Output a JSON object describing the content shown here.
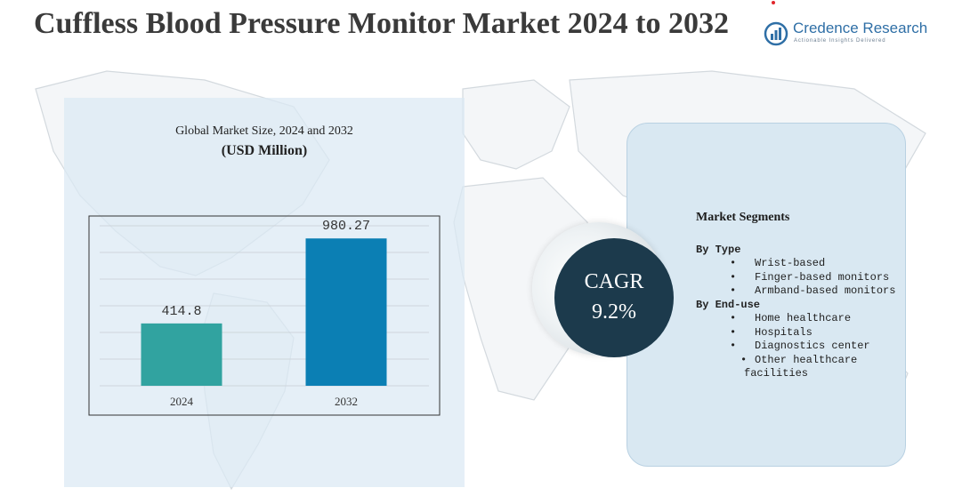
{
  "header": {
    "title": "Cuffless Blood Pressure Monitor Market 2024 to 2032"
  },
  "logo": {
    "name": "Credence Research",
    "tagline": "Actionable Insights Delivered",
    "icon": "bar-chart-circle-icon"
  },
  "chart_data": {
    "type": "bar",
    "title": "Global Market Size, 2024 and 2032",
    "subtitle": "(USD Million)",
    "categories": [
      "2024",
      "2032"
    ],
    "values": [
      414.8,
      980.27
    ],
    "value_labels": [
      "414.8",
      "980.27"
    ],
    "colors": [
      "#31a3a0",
      "#0b7fb4"
    ],
    "xlabel": "",
    "ylabel": "",
    "grid": true,
    "legend": "none"
  },
  "cagr": {
    "label": "CAGR",
    "value": "9.2%"
  },
  "segments": {
    "heading": "Market Segments",
    "groups": [
      {
        "title": "By Type",
        "items": [
          "Wrist-based",
          "Finger-based monitors",
          "Armband-based monitors"
        ]
      },
      {
        "title": "By End-use",
        "items": [
          "Home healthcare",
          "Hospitals",
          "Diagnostics center",
          "Other healthcare facilities"
        ]
      }
    ]
  },
  "colors": {
    "panel": "#dbe9f4",
    "cagr_circle": "#1c3a4c",
    "title_text": "#3a3a3a",
    "brand": "#2f6fa6"
  }
}
